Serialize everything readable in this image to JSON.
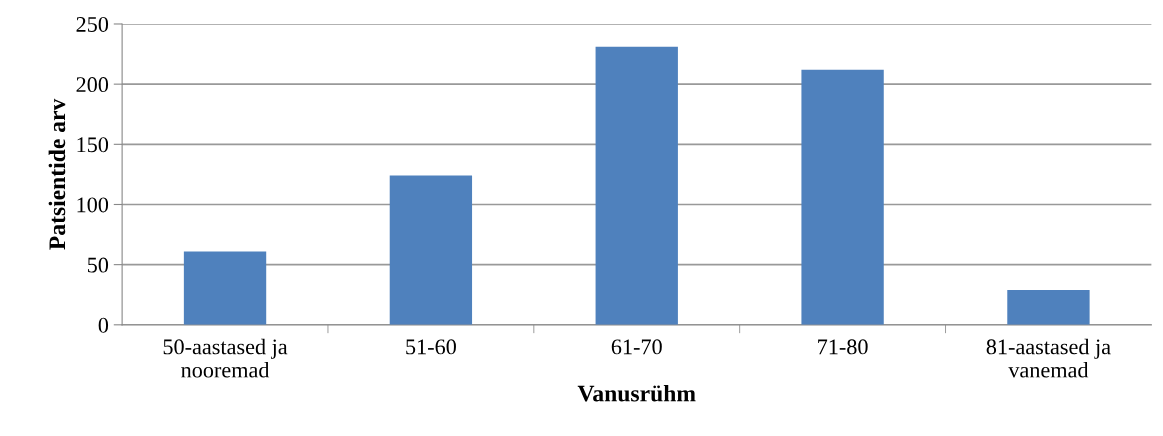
{
  "chart_data": {
    "type": "bar",
    "xlabel": "Vanusrühm",
    "ylabel": "Patsientide arv",
    "categories": [
      "50-aastased ja\nnooremad",
      "51-60",
      "61-70",
      "71-80",
      "81-aastased ja\nvanemad"
    ],
    "values": [
      61,
      124,
      231,
      212,
      29
    ],
    "color": "#4f81bd",
    "ylim": [
      0,
      250
    ],
    "yticks": [
      0,
      50,
      100,
      150,
      200,
      250
    ],
    "grid": "y"
  }
}
